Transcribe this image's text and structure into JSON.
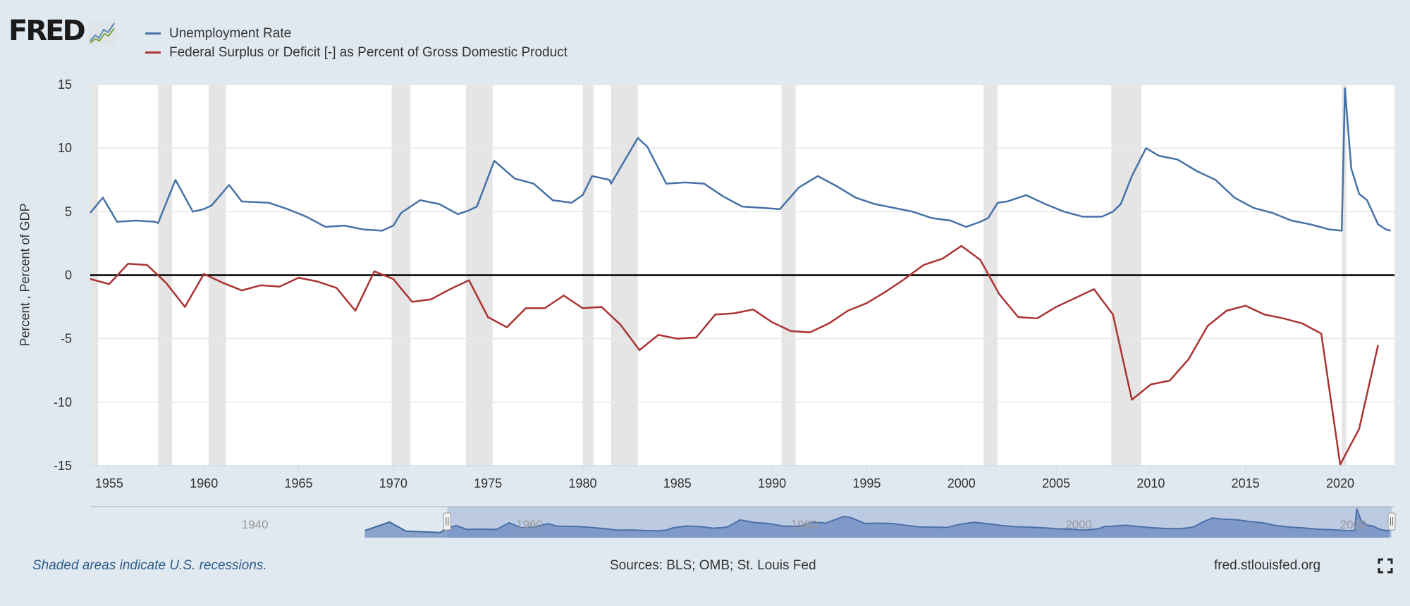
{
  "logo": {
    "text": "FRED"
  },
  "footer": {
    "note": "Shaded areas indicate U.S. recessions.",
    "sources": "Sources: BLS; OMB; St. Louis Fed",
    "site": "fred.stlouisfed.org",
    "fullscreen_icon": "fullscreen-icon"
  },
  "chart_data": {
    "type": "line",
    "title": "",
    "xlabel": "",
    "ylabel": "Percent , Percent of GDP",
    "xlim": [
      "1954-01",
      "2022-09"
    ],
    "ylim": [
      -15,
      15
    ],
    "yticks": [
      15,
      10,
      5,
      0,
      -5,
      -10,
      -15
    ],
    "xticks": [
      1955,
      1960,
      1965,
      1970,
      1975,
      1980,
      1985,
      1990,
      1995,
      2000,
      2005,
      2010,
      2015,
      2020
    ],
    "grid": true,
    "zero_line": true,
    "legend_placement": "top-left",
    "recessions": [
      [
        "1953-07",
        "1954-05"
      ],
      [
        "1957-08",
        "1958-04"
      ],
      [
        "1960-04",
        "1961-02"
      ],
      [
        "1969-12",
        "1970-11"
      ],
      [
        "1973-11",
        "1975-03"
      ],
      [
        "1980-01",
        "1980-07"
      ],
      [
        "1981-07",
        "1982-11"
      ],
      [
        "1990-07",
        "1991-03"
      ],
      [
        "2001-03",
        "2001-11"
      ],
      [
        "2007-12",
        "2009-06"
      ],
      [
        "2020-02",
        "2020-04"
      ]
    ],
    "series": [
      {
        "name": "Unemployment Rate",
        "color": "#4572a7",
        "x": [
          "1954-01",
          "1954-09",
          "1955-06",
          "1956-06",
          "1957-06",
          "1957-08",
          "1958-07",
          "1959-06",
          "1960-01",
          "1960-06",
          "1961-05",
          "1962-01",
          "1963-06",
          "1964-06",
          "1965-06",
          "1966-06",
          "1967-06",
          "1968-06",
          "1969-06",
          "1970-01",
          "1970-06",
          "1971-06",
          "1972-06",
          "1973-06",
          "1974-01",
          "1974-06",
          "1975-05",
          "1976-06",
          "1977-06",
          "1978-06",
          "1979-06",
          "1980-01",
          "1980-07",
          "1981-06",
          "1981-07",
          "1982-12",
          "1983-06",
          "1984-06",
          "1985-06",
          "1986-06",
          "1987-06",
          "1988-06",
          "1989-06",
          "1990-06",
          "1991-06",
          "1992-06",
          "1993-06",
          "1994-06",
          "1995-06",
          "1996-06",
          "1997-06",
          "1998-06",
          "1999-06",
          "2000-04",
          "2001-01",
          "2001-06",
          "2001-12",
          "2002-06",
          "2003-06",
          "2004-06",
          "2005-06",
          "2006-06",
          "2007-06",
          "2008-01",
          "2008-06",
          "2009-01",
          "2009-10",
          "2010-06",
          "2011-06",
          "2012-06",
          "2013-06",
          "2014-06",
          "2015-06",
          "2016-06",
          "2017-06",
          "2018-06",
          "2019-06",
          "2020-02",
          "2020-04",
          "2020-08",
          "2021-01",
          "2021-06",
          "2022-01",
          "2022-06",
          "2022-09"
        ],
        "values": [
          4.9,
          6.1,
          4.2,
          4.3,
          4.2,
          4.1,
          7.5,
          5.0,
          5.2,
          5.5,
          7.1,
          5.8,
          5.7,
          5.2,
          4.6,
          3.8,
          3.9,
          3.6,
          3.5,
          3.9,
          4.9,
          5.9,
          5.6,
          4.8,
          5.1,
          5.4,
          9.0,
          7.6,
          7.2,
          5.9,
          5.7,
          6.3,
          7.8,
          7.5,
          7.2,
          10.8,
          10.1,
          7.2,
          7.3,
          7.2,
          6.2,
          5.4,
          5.3,
          5.2,
          6.9,
          7.8,
          7.0,
          6.1,
          5.6,
          5.3,
          5.0,
          4.5,
          4.3,
          3.8,
          4.2,
          4.5,
          5.7,
          5.8,
          6.3,
          5.6,
          5.0,
          4.6,
          4.6,
          5.0,
          5.6,
          7.8,
          10.0,
          9.4,
          9.1,
          8.2,
          7.5,
          6.1,
          5.3,
          4.9,
          4.3,
          4.0,
          3.6,
          3.5,
          14.7,
          8.4,
          6.4,
          5.9,
          4.0,
          3.6,
          3.5
        ]
      },
      {
        "name": "Federal Surplus or Deficit [-] as Percent of Gross Domestic Product",
        "color": "#aa3333",
        "x": [
          1954,
          1955,
          1956,
          1957,
          1958,
          1959,
          1960,
          1961,
          1962,
          1963,
          1964,
          1965,
          1966,
          1967,
          1968,
          1969,
          1970,
          1971,
          1972,
          1973,
          1974,
          1975,
          1976,
          1977,
          1978,
          1979,
          1980,
          1981,
          1982,
          1983,
          1984,
          1985,
          1986,
          1987,
          1988,
          1989,
          1990,
          1991,
          1992,
          1993,
          1994,
          1995,
          1996,
          1997,
          1998,
          1999,
          2000,
          2001,
          2002,
          2003,
          2004,
          2005,
          2006,
          2007,
          2008,
          2009,
          2010,
          2011,
          2012,
          2013,
          2014,
          2015,
          2016,
          2017,
          2018,
          2019,
          2020,
          2021,
          2022
        ],
        "values": [
          -0.3,
          -0.7,
          0.9,
          0.8,
          -0.6,
          -2.5,
          0.1,
          -0.6,
          -1.2,
          -0.8,
          -0.9,
          -0.2,
          -0.5,
          -1.0,
          -2.8,
          0.3,
          -0.3,
          -2.1,
          -1.9,
          -1.1,
          -0.4,
          -3.3,
          -4.1,
          -2.6,
          -2.6,
          -1.6,
          -2.6,
          -2.5,
          -3.9,
          -5.9,
          -4.7,
          -5.0,
          -4.9,
          -3.1,
          -3.0,
          -2.7,
          -3.7,
          -4.4,
          -4.5,
          -3.8,
          -2.8,
          -2.2,
          -1.3,
          -0.3,
          0.8,
          1.3,
          2.3,
          1.2,
          -1.5,
          -3.3,
          -3.4,
          -2.5,
          -1.8,
          -1.1,
          -3.1,
          -9.8,
          -8.6,
          -8.3,
          -6.6,
          -4.0,
          -2.8,
          -2.4,
          -3.1,
          -3.4,
          -3.8,
          -4.6,
          -14.9,
          -12.1,
          -5.5
        ]
      }
    ],
    "navigator": {
      "labels": [
        1940,
        1960,
        1980,
        2000,
        2020
      ],
      "selected_range": [
        "1954-01",
        "2022-09"
      ],
      "series": "Unemployment Rate"
    }
  }
}
